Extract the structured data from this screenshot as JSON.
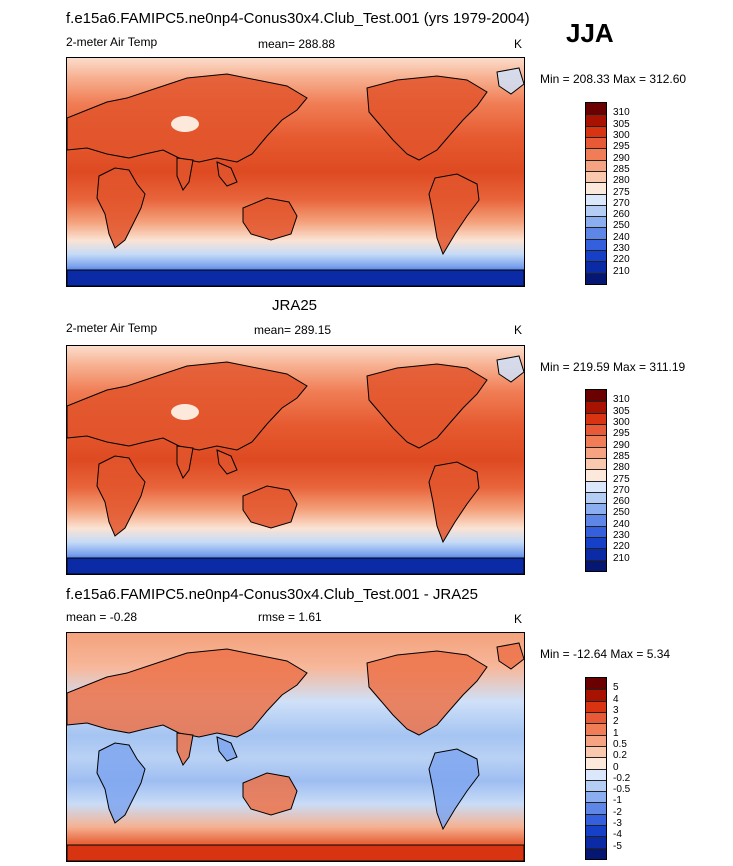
{
  "header": {
    "title": "f.e15a6.FAMIPC5.ne0np4-Conus30x4.Club_Test.001 (yrs 1979-2004)",
    "season": "JJA"
  },
  "panels": [
    {
      "title": "",
      "variable": "2-meter Air Temp",
      "stat_left": "",
      "stat_middle": "mean= 288.88",
      "units": "K",
      "minmax": "Min = 208.33 Max = 312.60",
      "palette": "temp"
    },
    {
      "title": "JRA25",
      "variable": "2-meter Air Temp",
      "stat_left": "",
      "stat_middle": "mean= 289.15",
      "units": "K",
      "minmax": "Min = 219.59 Max = 311.19",
      "palette": "temp"
    },
    {
      "title": "f.e15a6.FAMIPC5.ne0np4-Conus30x4.Club_Test.001 - JRA25",
      "variable": "",
      "stat_left": "mean =  -0.28",
      "stat_middle": "rmse =   1.61",
      "units": "K",
      "minmax": "Min = -12.64 Max =  5.34",
      "palette": "diff"
    }
  ],
  "colorbars": {
    "temp": {
      "labels": [
        "310",
        "305",
        "300",
        "295",
        "290",
        "285",
        "280",
        "275",
        "270",
        "260",
        "250",
        "240",
        "230",
        "220",
        "210"
      ],
      "colors": [
        "#6b0000",
        "#a81200",
        "#d93412",
        "#e85a35",
        "#f07d55",
        "#f5a380",
        "#f9c8ad",
        "#fde9dc",
        "#dbe8fb",
        "#b3cdf5",
        "#8aaef0",
        "#5d86e6",
        "#3460dd",
        "#1740c8",
        "#0b2aa6",
        "#061673"
      ]
    },
    "diff": {
      "labels": [
        "5",
        "4",
        "3",
        "2",
        "1",
        "0.5",
        "0.2",
        "0",
        "-0.2",
        "-0.5",
        "-1",
        "-2",
        "-3",
        "-4",
        "-5"
      ],
      "colors": [
        "#6b0000",
        "#a81200",
        "#d93412",
        "#e85a35",
        "#f07d55",
        "#f5a380",
        "#f9c8ad",
        "#fde9dc",
        "#dbe8fb",
        "#b3cdf5",
        "#8aaef0",
        "#5d86e6",
        "#3460dd",
        "#1740c8",
        "#0b2aa6",
        "#061673"
      ]
    }
  }
}
